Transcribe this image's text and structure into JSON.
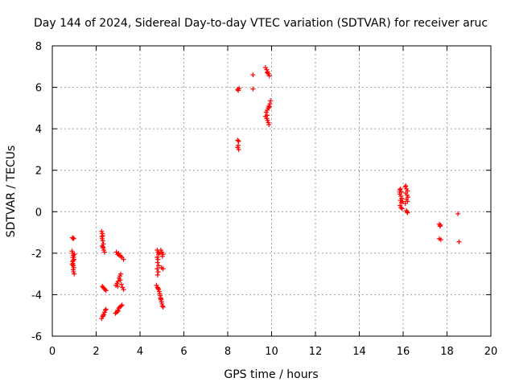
{
  "chart_data": {
    "type": "scatter",
    "title": "Day 144 of 2024, Sidereal Day-to-day VTEC variation (SDTVAR) for receiver aruc",
    "xlabel": "GPS time / hours",
    "ylabel": "SDTVAR / TECUs",
    "xlim": [
      0,
      20
    ],
    "ylim": [
      -6,
      8
    ],
    "xticks": [
      0,
      2,
      4,
      6,
      8,
      10,
      12,
      14,
      16,
      18,
      20
    ],
    "yticks": [
      -6,
      -4,
      -2,
      0,
      2,
      4,
      6,
      8
    ],
    "grid": true,
    "marker": "+",
    "marker_color": "#ff0000",
    "series": [
      {
        "name": "SDTVAR",
        "points": [
          [
            0.92,
            -1.25
          ],
          [
            0.95,
            -1.3
          ],
          [
            0.98,
            -1.28
          ],
          [
            0.9,
            -1.9
          ],
          [
            0.93,
            -2.0
          ],
          [
            0.95,
            -2.1
          ],
          [
            0.97,
            -2.2
          ],
          [
            0.99,
            -2.3
          ],
          [
            0.92,
            -2.4
          ],
          [
            0.94,
            -2.5
          ],
          [
            0.96,
            -2.6
          ],
          [
            0.98,
            -2.7
          ],
          [
            0.95,
            -2.8
          ],
          [
            0.97,
            -2.9
          ],
          [
            1.0,
            -3.0
          ],
          [
            0.93,
            -2.2
          ],
          [
            0.96,
            -2.35
          ],
          [
            1.01,
            -2.05
          ],
          [
            0.91,
            -2.55
          ],
          [
            2.25,
            -0.95
          ],
          [
            2.28,
            -1.05
          ],
          [
            2.3,
            -1.15
          ],
          [
            2.27,
            -1.3
          ],
          [
            2.3,
            -1.4
          ],
          [
            2.33,
            -1.55
          ],
          [
            2.28,
            -1.65
          ],
          [
            2.32,
            -1.75
          ],
          [
            2.35,
            -1.85
          ],
          [
            2.38,
            -1.95
          ],
          [
            2.26,
            -1.2
          ],
          [
            2.31,
            -1.7
          ],
          [
            2.28,
            -3.6
          ],
          [
            2.32,
            -3.65
          ],
          [
            2.36,
            -3.7
          ],
          [
            2.4,
            -3.75
          ],
          [
            2.45,
            -3.8
          ],
          [
            2.25,
            -5.15
          ],
          [
            2.3,
            -5.05
          ],
          [
            2.35,
            -4.95
          ],
          [
            2.38,
            -4.85
          ],
          [
            2.42,
            -4.75
          ],
          [
            2.45,
            -4.7
          ],
          [
            2.32,
            -5.0
          ],
          [
            2.92,
            -1.95
          ],
          [
            2.98,
            -2.05
          ],
          [
            3.05,
            -2.1
          ],
          [
            3.12,
            -2.15
          ],
          [
            3.18,
            -2.2
          ],
          [
            3.25,
            -2.3
          ],
          [
            3.02,
            -2.0
          ],
          [
            2.9,
            -3.55
          ],
          [
            2.95,
            -3.45
          ],
          [
            3.0,
            -3.35
          ],
          [
            3.05,
            -3.2
          ],
          [
            3.08,
            -3.1
          ],
          [
            3.12,
            -3.0
          ],
          [
            3.15,
            -3.5
          ],
          [
            3.2,
            -3.65
          ],
          [
            3.25,
            -3.75
          ],
          [
            2.98,
            -3.6
          ],
          [
            3.1,
            -3.3
          ],
          [
            2.88,
            -4.9
          ],
          [
            2.93,
            -4.85
          ],
          [
            2.98,
            -4.75
          ],
          [
            3.03,
            -4.65
          ],
          [
            3.08,
            -4.6
          ],
          [
            3.13,
            -4.55
          ],
          [
            3.18,
            -4.5
          ],
          [
            3.0,
            -4.8
          ],
          [
            4.78,
            -1.85
          ],
          [
            4.82,
            -1.95
          ],
          [
            4.85,
            -2.05
          ],
          [
            4.78,
            -2.2
          ],
          [
            4.82,
            -2.3
          ],
          [
            4.8,
            -2.45
          ],
          [
            4.85,
            -2.6
          ],
          [
            4.78,
            -2.75
          ],
          [
            4.83,
            -2.9
          ],
          [
            4.8,
            -3.05
          ],
          [
            4.87,
            -2.0
          ],
          [
            4.95,
            -1.85
          ],
          [
            5.0,
            -1.95
          ],
          [
            5.05,
            -2.05
          ],
          [
            5.02,
            -2.15
          ],
          [
            4.98,
            -2.7
          ],
          [
            5.05,
            -2.75
          ],
          [
            4.75,
            -3.55
          ],
          [
            4.8,
            -3.65
          ],
          [
            4.85,
            -3.75
          ],
          [
            4.88,
            -3.85
          ],
          [
            4.9,
            -3.95
          ],
          [
            4.92,
            -4.05
          ],
          [
            4.94,
            -4.15
          ],
          [
            4.96,
            -4.25
          ],
          [
            4.98,
            -4.35
          ],
          [
            5.0,
            -4.45
          ],
          [
            5.03,
            -4.55
          ],
          [
            5.05,
            -4.6
          ],
          [
            4.82,
            -3.7
          ],
          [
            4.95,
            -4.2
          ],
          [
            8.45,
            3.45
          ],
          [
            8.5,
            3.4
          ],
          [
            8.45,
            3.1
          ],
          [
            8.5,
            3.0
          ],
          [
            8.48,
            3.2
          ],
          [
            8.45,
            5.9
          ],
          [
            8.52,
            5.95
          ],
          [
            8.48,
            5.85
          ],
          [
            9.15,
            6.6
          ],
          [
            9.15,
            5.92
          ],
          [
            9.72,
            6.95
          ],
          [
            9.78,
            6.85
          ],
          [
            9.82,
            6.75
          ],
          [
            9.86,
            6.65
          ],
          [
            9.9,
            6.55
          ],
          [
            9.8,
            6.7
          ],
          [
            9.75,
            4.8
          ],
          [
            9.8,
            4.9
          ],
          [
            9.85,
            5.0
          ],
          [
            9.88,
            5.1
          ],
          [
            9.92,
            5.2
          ],
          [
            9.95,
            5.35
          ],
          [
            9.72,
            4.6
          ],
          [
            9.78,
            4.5
          ],
          [
            9.82,
            4.4
          ],
          [
            9.85,
            4.3
          ],
          [
            9.88,
            4.2
          ],
          [
            9.8,
            4.65
          ],
          [
            9.9,
            5.05
          ],
          [
            15.85,
            1.05
          ],
          [
            15.88,
            1.1
          ],
          [
            15.92,
            0.95
          ],
          [
            15.85,
            0.85
          ],
          [
            15.9,
            0.75
          ],
          [
            15.93,
            0.65
          ],
          [
            15.88,
            0.55
          ],
          [
            15.92,
            0.45
          ],
          [
            15.86,
            0.3
          ],
          [
            15.9,
            0.2
          ],
          [
            15.95,
            0.15
          ],
          [
            15.97,
            0.5
          ],
          [
            15.84,
            0.95
          ],
          [
            16.1,
            1.2
          ],
          [
            16.15,
            1.1
          ],
          [
            16.2,
            1.0
          ],
          [
            16.12,
            0.9
          ],
          [
            16.18,
            0.8
          ],
          [
            16.22,
            0.7
          ],
          [
            16.15,
            0.6
          ],
          [
            16.2,
            0.5
          ],
          [
            16.1,
            0.4
          ],
          [
            16.15,
            0.05
          ],
          [
            16.2,
            -0.05
          ],
          [
            16.18,
            0.0
          ],
          [
            16.12,
            1.25
          ],
          [
            17.65,
            -0.6
          ],
          [
            17.7,
            -0.65
          ],
          [
            17.68,
            -0.7
          ],
          [
            17.65,
            -1.3
          ],
          [
            17.72,
            -1.35
          ],
          [
            18.5,
            -0.1
          ],
          [
            18.55,
            -1.45
          ]
        ]
      }
    ]
  }
}
